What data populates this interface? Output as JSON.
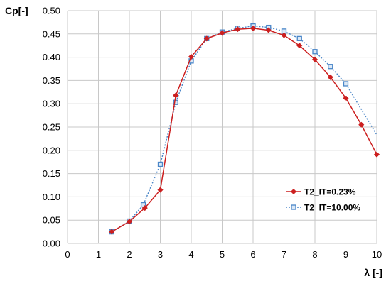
{
  "chart_data": {
    "type": "line",
    "ylabel": "Cp[-]",
    "xlabel": "λ [-]",
    "xlim": [
      0,
      10
    ],
    "ylim": [
      0,
      0.5
    ],
    "xticks": [
      "0",
      "1",
      "2",
      "3",
      "4",
      "5",
      "6",
      "7",
      "8",
      "9",
      "10"
    ],
    "yticks": [
      "0.00",
      "0.05",
      "0.10",
      "0.15",
      "0.20",
      "0.25",
      "0.30",
      "0.35",
      "0.40",
      "0.45",
      "0.50"
    ],
    "grid": true,
    "legend_position": "bottom-right",
    "series": [
      {
        "name": "T2_IT=0.23%",
        "color": "#cc1f1f",
        "line": "solid",
        "marker": "diamond",
        "x": [
          1.43,
          2.0,
          2.5,
          3.0,
          3.5,
          4.0,
          4.5,
          5.0,
          5.5,
          6.0,
          6.5,
          7.0,
          7.5,
          8.0,
          8.5,
          9.0,
          9.5,
          10.0
        ],
        "y": [
          0.025,
          0.047,
          0.076,
          0.115,
          0.318,
          0.401,
          0.44,
          0.452,
          0.46,
          0.462,
          0.458,
          0.447,
          0.425,
          0.395,
          0.357,
          0.312,
          0.255,
          0.191
        ]
      },
      {
        "name": "T2_IT=10.00%",
        "color": "#4a86c8",
        "line": "dotted",
        "marker": "square",
        "x": [
          1.43,
          2.0,
          2.45,
          3.0,
          3.5,
          4.0,
          4.5,
          5.0,
          5.5,
          6.0,
          6.5,
          7.0,
          7.5,
          8.0,
          8.5,
          9.0,
          10.0
        ],
        "y": [
          0.025,
          0.048,
          0.083,
          0.17,
          0.303,
          0.392,
          0.44,
          0.454,
          0.462,
          0.467,
          0.464,
          0.456,
          0.44,
          0.412,
          0.38,
          0.343,
          0.233
        ],
        "marker_count": 16
      }
    ]
  }
}
